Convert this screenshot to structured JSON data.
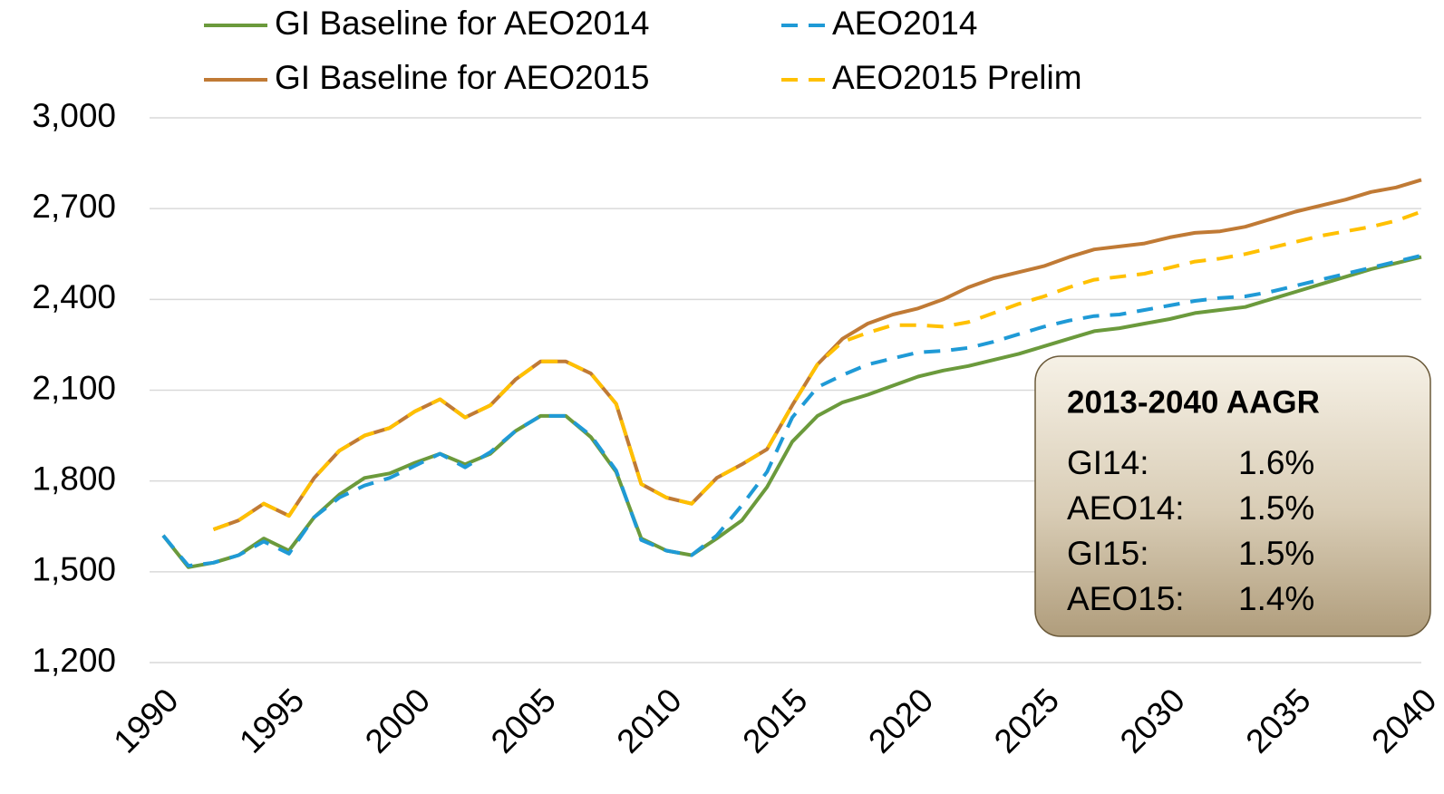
{
  "chart_data": {
    "type": "line",
    "x": [
      1990,
      1991,
      1992,
      1993,
      1994,
      1995,
      1996,
      1997,
      1998,
      1999,
      2000,
      2001,
      2002,
      2003,
      2004,
      2005,
      2006,
      2007,
      2008,
      2009,
      2010,
      2011,
      2012,
      2013,
      2014,
      2015,
      2016,
      2017,
      2018,
      2019,
      2020,
      2021,
      2022,
      2023,
      2024,
      2025,
      2026,
      2027,
      2028,
      2029,
      2030,
      2031,
      2032,
      2033,
      2034,
      2035,
      2036,
      2037,
      2038,
      2039,
      2040
    ],
    "xlim": [
      1990,
      2040
    ],
    "xticks": [
      1990,
      1995,
      2000,
      2005,
      2010,
      2015,
      2020,
      2025,
      2030,
      2035,
      2040
    ],
    "ylim": [
      1200,
      3000
    ],
    "yticks": [
      {
        "value": 1200,
        "label": "1,200"
      },
      {
        "value": 1500,
        "label": "1,500"
      },
      {
        "value": 1800,
        "label": "1,800"
      },
      {
        "value": 2100,
        "label": "2,100"
      },
      {
        "value": 2400,
        "label": "2,400"
      },
      {
        "value": 2700,
        "label": "2,700"
      },
      {
        "value": 3000,
        "label": "3,000"
      }
    ],
    "grid": true,
    "series": [
      {
        "name": "GI Baseline for AEO2014",
        "color": "#6b9a3c",
        "dashed": false,
        "values": [
          1620,
          1515,
          1530,
          1555,
          1610,
          1570,
          1680,
          1755,
          1810,
          1825,
          1860,
          1890,
          1855,
          1890,
          1965,
          2015,
          2015,
          1945,
          1830,
          1610,
          1570,
          1555,
          1610,
          1670,
          1780,
          1930,
          2015,
          2060,
          2085,
          2115,
          2145,
          2165,
          2180,
          2200,
          2220,
          2245,
          2270,
          2295,
          2305,
          2320,
          2335,
          2355,
          2365,
          2375,
          2400,
          2425,
          2450,
          2475,
          2500,
          2520,
          2540
        ]
      },
      {
        "name": "GI Baseline for AEO2015",
        "color": "#c07a35",
        "dashed": false,
        "values": [
          null,
          null,
          1640,
          1670,
          1725,
          1685,
          1810,
          1900,
          1950,
          1975,
          2030,
          2070,
          2010,
          2050,
          2135,
          2195,
          2195,
          2155,
          2055,
          1790,
          1745,
          1725,
          1810,
          1855,
          1905,
          2050,
          2185,
          2270,
          2320,
          2350,
          2370,
          2400,
          2440,
          2470,
          2490,
          2510,
          2540,
          2565,
          2575,
          2585,
          2605,
          2620,
          2625,
          2640,
          2665,
          2690,
          2710,
          2730,
          2755,
          2770,
          2795
        ]
      },
      {
        "name": "AEO2014",
        "color": "#1f9ad6",
        "dashed": true,
        "values": [
          1620,
          1520,
          1530,
          1555,
          1600,
          1560,
          1680,
          1745,
          1785,
          1810,
          1850,
          1890,
          1845,
          1895,
          1965,
          2015,
          2015,
          1950,
          1835,
          1605,
          1570,
          1555,
          1620,
          1720,
          1830,
          2010,
          2110,
          2150,
          2185,
          2205,
          2225,
          2230,
          2240,
          2260,
          2285,
          2310,
          2330,
          2345,
          2350,
          2365,
          2380,
          2395,
          2405,
          2410,
          2425,
          2445,
          2465,
          2485,
          2505,
          2525,
          2545
        ]
      },
      {
        "name": "AEO2015 Prelim",
        "color": "#ffc000",
        "dashed": true,
        "values": [
          null,
          null,
          1640,
          1670,
          1725,
          1685,
          1810,
          1900,
          1950,
          1975,
          2030,
          2070,
          2010,
          2050,
          2135,
          2195,
          2195,
          2155,
          2055,
          1790,
          1745,
          1725,
          1810,
          1855,
          1905,
          2050,
          2185,
          2260,
          2290,
          2315,
          2315,
          2310,
          2325,
          2355,
          2385,
          2410,
          2440,
          2465,
          2475,
          2485,
          2505,
          2525,
          2535,
          2550,
          2570,
          2590,
          2610,
          2625,
          2640,
          2660,
          2690
        ]
      }
    ],
    "annotation": {
      "title": "2013-2040 AAGR",
      "rows": [
        [
          "GI14:",
          "1.6%"
        ],
        [
          "AEO14:",
          "1.5%"
        ],
        [
          "GI15:",
          "1.5%"
        ],
        [
          "AEO15:",
          "1.4%"
        ]
      ]
    }
  }
}
